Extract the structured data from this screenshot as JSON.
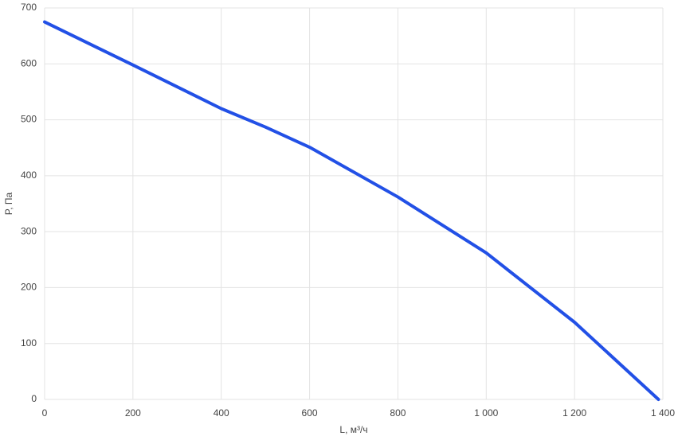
{
  "chart_data": {
    "type": "line",
    "x_label": "L, м³/ч",
    "y_label": "P, Па",
    "x": [
      0,
      200,
      400,
      500,
      600,
      800,
      1000,
      1200,
      1390
    ],
    "series": [
      {
        "color": "#2250e6",
        "values": [
          675,
          598,
          520,
          487,
          451,
          362,
          262,
          138,
          0
        ]
      }
    ],
    "xlim": [
      0,
      1400
    ],
    "xticks": [
      0,
      200,
      400,
      600,
      800,
      {
        "value": 1000,
        "label": "1 000"
      },
      {
        "value": 1200,
        "label": "1 200"
      },
      {
        "value": 1400,
        "label": "1 400"
      }
    ],
    "ylim": [
      0,
      700
    ],
    "yticks": [
      0,
      100,
      200,
      300,
      400,
      500,
      600,
      700
    ],
    "grid": true
  }
}
